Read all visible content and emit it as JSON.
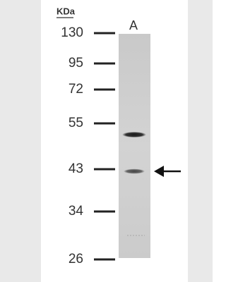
{
  "header": {
    "unit": "KDa",
    "lane": "A"
  },
  "markers": [
    "130",
    "95",
    "72",
    "55",
    "43",
    "34",
    "26"
  ]
}
